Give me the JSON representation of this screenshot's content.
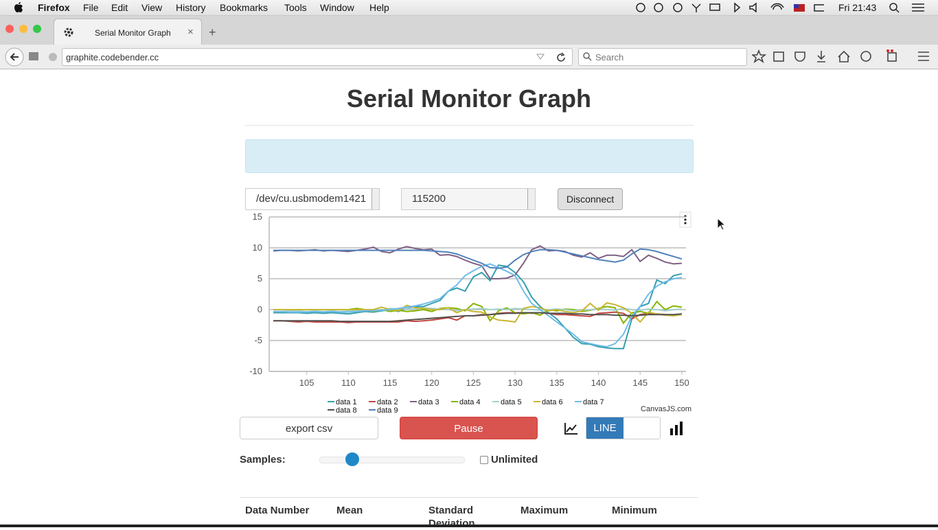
{
  "menubar": {
    "items": [
      "Firefox",
      "File",
      "Edit",
      "View",
      "History",
      "Bookmarks",
      "Tools",
      "Window",
      "Help"
    ],
    "clock": "Fri 21:43"
  },
  "browser": {
    "tab_title": "Serial Monitor Graph",
    "url": "graphite.codebender.cc",
    "search_placeholder": "Search"
  },
  "page": {
    "title": "Serial Monitor Graph",
    "port": "/dev/cu.usbmodem1421",
    "baud": "115200",
    "disconnect": "Disconnect",
    "export": "export csv",
    "pause": "Pause",
    "line_toggle": "LINE",
    "samples_label": "Samples:",
    "unlimited": "Unlimited",
    "credit": "CanvasJS.com",
    "table_headers": [
      "Data Number",
      "Mean",
      "Standard Deviation",
      "Maximum",
      "Minimum"
    ]
  },
  "chart_data": {
    "type": "line",
    "x": [
      101,
      102,
      103,
      104,
      105,
      106,
      107,
      108,
      109,
      110,
      111,
      112,
      113,
      114,
      115,
      116,
      117,
      118,
      119,
      120,
      121,
      122,
      123,
      124,
      125,
      126,
      127,
      128,
      129,
      130,
      131,
      132,
      133,
      134,
      135,
      136,
      137,
      138,
      139,
      140,
      141,
      142,
      143,
      144,
      145,
      146,
      147,
      148,
      149,
      150
    ],
    "xlim": [
      100.5,
      150.5
    ],
    "xticks": [
      105,
      110,
      115,
      120,
      125,
      130,
      135,
      140,
      145,
      150
    ],
    "ylim": [
      -10,
      15
    ],
    "yticks": [
      -10,
      -5,
      0,
      5,
      10,
      15
    ],
    "grid": true,
    "series": [
      {
        "name": "data 1",
        "color": "#369EAD",
        "values": [
          -0.5,
          -0.5,
          -0.5,
          -0.5,
          -0.6,
          -0.5,
          -0.6,
          -0.5,
          -0.6,
          -0.7,
          -0.5,
          -0.3,
          -0.4,
          -0.2,
          0,
          -0.3,
          0.3,
          0.5,
          0.5,
          1,
          1.5,
          3,
          3.5,
          3,
          5.3,
          6,
          4.7,
          7.2,
          7,
          6,
          4.5,
          2,
          0.5,
          -0.5,
          -1.5,
          -3,
          -4.5,
          -5.5,
          -5.6,
          -6,
          -6.2,
          -6.3,
          -6.3,
          -1.5,
          0.5,
          1,
          4.8,
          4.2,
          5.5,
          5.8
        ]
      },
      {
        "name": "data 2",
        "color": "#C24642",
        "values": [
          -1.8,
          -1.8,
          -1.9,
          -2,
          -1.9,
          -2,
          -2,
          -2,
          -2,
          -2.1,
          -2,
          -2,
          -2,
          -2,
          -2,
          -2,
          -1.8,
          -1.9,
          -1.8,
          -1.7,
          -1.5,
          -1.3,
          -1.7,
          -1,
          -1,
          -0.8,
          -0.8,
          -0.6,
          -0.5,
          -0.5,
          -0.5,
          -0.6,
          -0.5,
          -0.6,
          -0.8,
          -0.8,
          -0.9,
          -1,
          -1.1,
          -0.6,
          -0.5,
          -0.4,
          -0.6,
          -1.5,
          -0.8,
          -0.6,
          -0.7,
          -0.8,
          -0.9,
          -0.7
        ]
      },
      {
        "name": "data 3",
        "color": "#7F6084",
        "values": [
          9.5,
          9.6,
          9.6,
          9.5,
          9.6,
          9.7,
          9.5,
          9.6,
          9.5,
          9.4,
          9.6,
          9.8,
          10.1,
          9.4,
          9.2,
          9.8,
          10.2,
          9.9,
          9.7,
          9.8,
          8.8,
          8.9,
          8.6,
          8,
          7.5,
          7.1,
          5,
          5,
          5.1,
          5.6,
          7.5,
          9.7,
          10.3,
          9.5,
          9.6,
          9.4,
          8.8,
          8.5,
          9.2,
          8.3,
          8.8,
          8.8,
          8.6,
          9.7,
          7.8,
          8.8,
          8.3,
          7.7,
          7.4,
          7.5
        ]
      },
      {
        "name": "data 4",
        "color": "#86B402",
        "values": [
          0,
          0,
          0,
          0,
          0,
          0,
          0,
          0,
          0,
          0,
          0.2,
          0,
          -0.3,
          0,
          -0.3,
          -0.1,
          -0.3,
          -0.2,
          0,
          -0.3,
          0.2,
          0.3,
          0.2,
          -0.2,
          1,
          0.5,
          -1.8,
          -0.2,
          0.3,
          -0.5,
          -0.7,
          -0.5,
          -0.9,
          0,
          -0.2,
          0.1,
          0,
          -0.3,
          -0.1,
          0.2,
          0.5,
          0.3,
          -2.2,
          -0.5,
          -0.3,
          -0.6,
          1.3,
          0,
          0.6,
          0.4
        ]
      },
      {
        "name": "data 5",
        "color": "#A2D1CF",
        "values": [
          -0.3,
          -0.3,
          -0.2,
          -0.2,
          -0.3,
          -0.2,
          -0.3,
          -0.2,
          -0.3,
          -0.2,
          -0.2,
          -0.1,
          0,
          -0.1,
          0.2,
          0.1,
          0.2,
          0.1,
          0.3,
          0.2,
          0.1,
          0,
          -0.2,
          0,
          0.1,
          0.2,
          0,
          0.1,
          0,
          0.2,
          0.1,
          0,
          -0.1,
          0,
          0.1,
          0,
          -0.2,
          -0.1,
          0,
          0.1,
          0,
          -0.1,
          0.2,
          0,
          -0.1,
          0.1,
          0,
          -0.2,
          0,
          0.1
        ]
      },
      {
        "name": "data 6",
        "color": "#C8B631",
        "values": [
          0,
          0,
          0,
          0,
          0,
          0,
          0,
          0,
          0,
          0,
          0,
          0,
          0,
          0.4,
          0,
          -0.2,
          0.7,
          0.3,
          0.2,
          0,
          0,
          0.3,
          -0.5,
          0,
          -0.3,
          -0.4,
          -1.2,
          -1.7,
          -1.8,
          -2,
          0.2,
          0.5,
          0.3,
          -0.2,
          0,
          -0.3,
          -0.5,
          -0.2,
          1,
          -0.1,
          1.1,
          0.8,
          0.3,
          -0.6,
          -2,
          -0.4,
          -0.7,
          -0.9,
          -1,
          -0.8
        ]
      },
      {
        "name": "data 7",
        "color": "#6DBCEB",
        "values": [
          -0.3,
          -0.3,
          -0.4,
          -0.4,
          -0.4,
          -0.3,
          -0.4,
          -0.3,
          -0.4,
          -0.4,
          -0.3,
          -0.2,
          -0.2,
          -0.1,
          0,
          0.2,
          0.4,
          0.6,
          0.9,
          1.3,
          1.8,
          3,
          4,
          5.5,
          6.3,
          7,
          7.4,
          6.8,
          6.2,
          5.5,
          3,
          1,
          0,
          -1,
          -2,
          -3,
          -4,
          -5.2,
          -5.5,
          -5.8,
          -6,
          -5.5,
          -4,
          -1,
          0.5,
          2.5,
          3.8,
          4.5,
          5,
          5.2
        ]
      },
      {
        "name": "data 8",
        "color": "#52514E",
        "values": [
          -1.8,
          -1.8,
          -1.8,
          -1.8,
          -1.8,
          -1.8,
          -1.8,
          -1.8,
          -1.9,
          -1.9,
          -1.9,
          -1.9,
          -1.9,
          -1.9,
          -1.9,
          -1.8,
          -1.7,
          -1.6,
          -1.5,
          -1.4,
          -1.3,
          -1.2,
          -1.1,
          -1,
          -1,
          -0.9,
          -0.8,
          -0.7,
          -0.6,
          -0.6,
          -0.5,
          -0.5,
          -0.5,
          -0.6,
          -0.6,
          -0.6,
          -0.7,
          -0.7,
          -0.8,
          -0.8,
          -0.8,
          -0.9,
          -0.9,
          -1,
          -0.9,
          -0.8,
          -0.8,
          -0.8,
          -0.8,
          -0.7
        ]
      },
      {
        "name": "data 9",
        "color": "#4F81BC",
        "values": [
          9.6,
          9.6,
          9.6,
          9.6,
          9.6,
          9.6,
          9.6,
          9.6,
          9.6,
          9.6,
          9.6,
          9.6,
          9.6,
          9.6,
          9.6,
          9.6,
          9.6,
          9.6,
          9.6,
          9.5,
          9.4,
          9.3,
          9,
          8.5,
          8,
          7.5,
          6.8,
          6.7,
          6.9,
          8,
          8.9,
          9.4,
          9.7,
          9.7,
          9.6,
          9.3,
          9,
          8.7,
          8.4,
          8.1,
          7.9,
          7.7,
          8,
          9,
          9.8,
          9.7,
          9.4,
          9,
          8.6,
          8.2
        ]
      }
    ]
  }
}
